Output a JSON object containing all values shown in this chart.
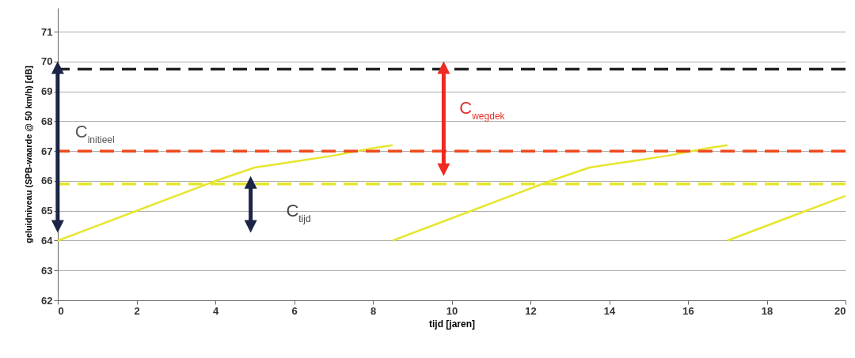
{
  "chart_data": {
    "type": "line",
    "xlabel": "tijd [jaren]",
    "ylabel": "geluidniveau (SPB-waarde @ 50 km/h) [dB]",
    "xlim": [
      0,
      20
    ],
    "xticks": [
      0,
      2,
      4,
      6,
      8,
      10,
      12,
      14,
      16,
      18,
      20
    ],
    "ylim": [
      62,
      71.8
    ],
    "yticks": [
      62,
      63,
      64,
      65,
      66,
      67,
      68,
      69,
      70,
      71
    ],
    "grid": "y",
    "marker": "none",
    "line_style": "solid",
    "series": [
      {
        "color": "#e6e62e",
        "x": [
          0,
          1,
          2,
          3,
          4,
          5,
          6,
          7,
          8,
          8.5
        ],
        "values": [
          64,
          64.5,
          65,
          65.5,
          66,
          66.45,
          66.65,
          66.85,
          67.1,
          67.2
        ]
      },
      {
        "color": "#e6e62e",
        "x": [
          8.5,
          10.5,
          12.5,
          13.5,
          14.5,
          15.5,
          16.5,
          17
        ],
        "values": [
          64,
          65,
          66,
          66.45,
          66.65,
          66.85,
          67.1,
          67.2
        ]
      },
      {
        "color": "#e6e62e",
        "x": [
          17,
          19,
          20
        ],
        "values": [
          64,
          65,
          65.5
        ]
      }
    ],
    "ref_lines": [
      {
        "axis": "y",
        "value": 69.75,
        "color": "#222222",
        "line_style": "dashed"
      },
      {
        "axis": "y",
        "value": 67,
        "color": "#f04a1e",
        "line_style": "dashed"
      },
      {
        "axis": "y",
        "value": 65.9,
        "color": "#e6e62e",
        "line_style": "dashed"
      }
    ],
    "annotations": [
      "C$_{initieel}$",
      "C$_{wegdek}$",
      "C$_{tijd}$"
    ]
  }
}
